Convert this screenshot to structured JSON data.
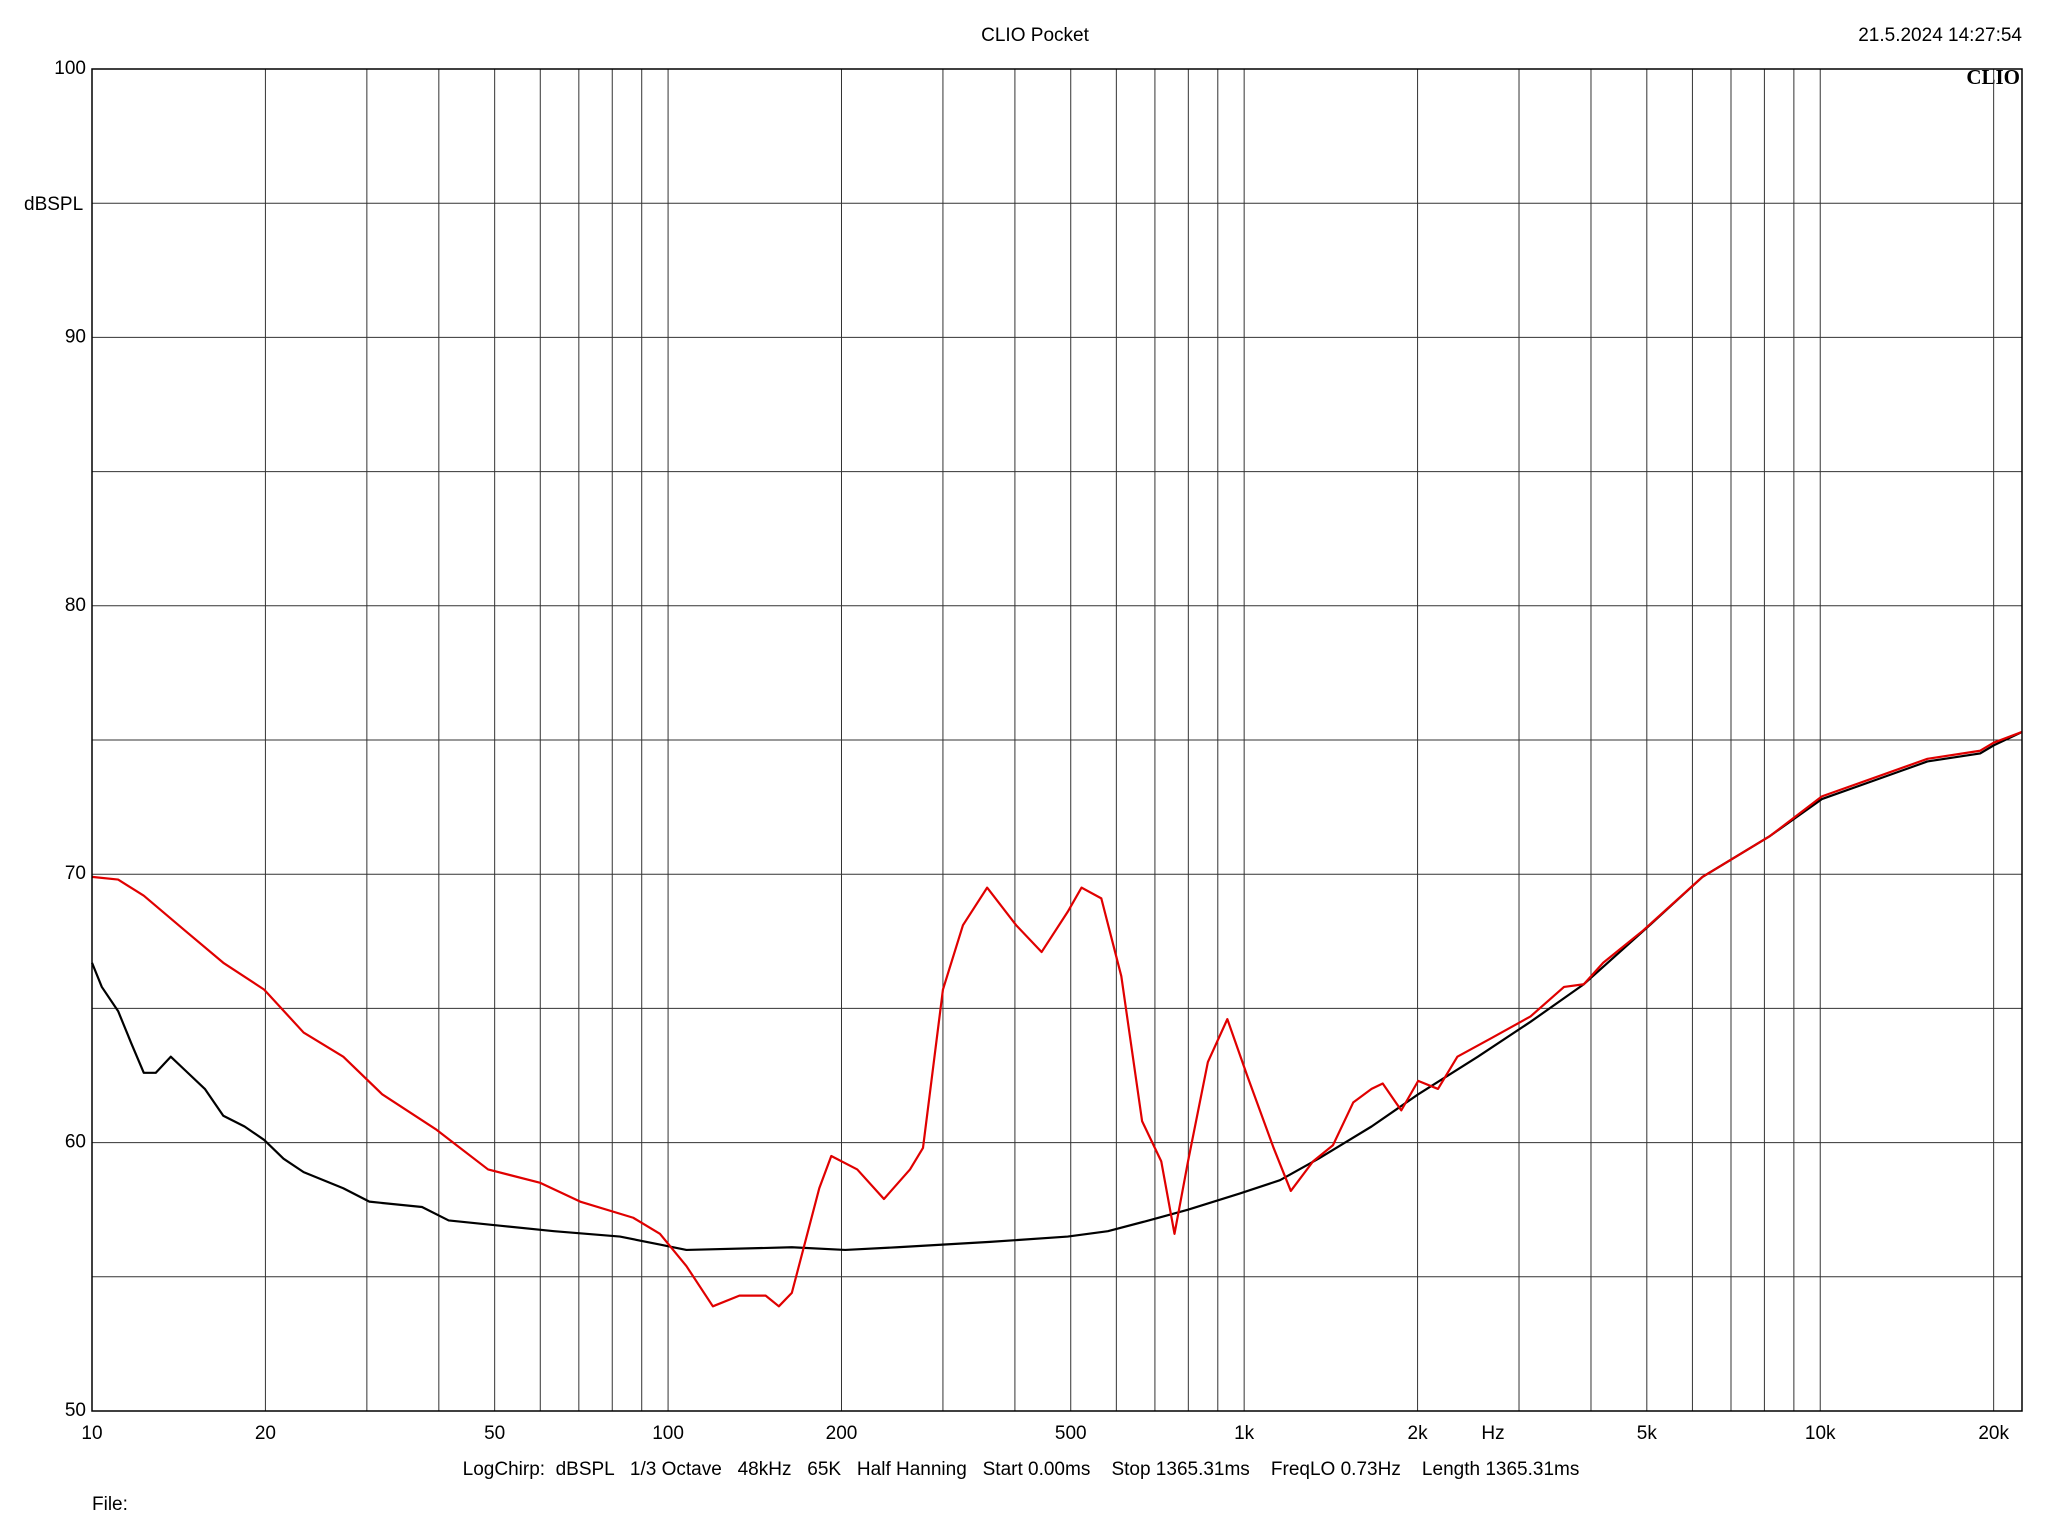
{
  "chart_data": {
    "type": "line",
    "title": "CLIO Pocket",
    "timestamp": "21.5.2024 14:27:54",
    "logo": "CLIO",
    "y_label": "dBSPL",
    "x_label": "Hz",
    "info": "LogChirp:  dBSPL   1/3 Octave   48kHz   65K   Half Hanning   Start 0.00ms    Stop 1365.31ms    FreqLO 0.73Hz    Length 1365.31ms",
    "footer": "File:",
    "xscale": "log",
    "xlim": [
      10,
      22400
    ],
    "ylim": [
      50,
      100
    ],
    "xticks": [
      10,
      20,
      50,
      100,
      200,
      500,
      {
        "value": 1000,
        "label": "1k"
      },
      {
        "value": 2000,
        "label": "2k"
      },
      {
        "value": 5000,
        "label": "5k"
      },
      {
        "value": 10000,
        "label": "10k"
      },
      {
        "value": 20000,
        "label": "20k"
      }
    ],
    "yticks": [
      50,
      60,
      70,
      80,
      90,
      100
    ],
    "xgrid": [
      10,
      20,
      30,
      40,
      50,
      60,
      70,
      80,
      90,
      100,
      200,
      300,
      400,
      500,
      600,
      700,
      800,
      900,
      1000,
      2000,
      3000,
      4000,
      5000,
      6000,
      7000,
      8000,
      9000,
      10000,
      20000
    ],
    "ygrid": [
      50,
      55,
      60,
      65,
      70,
      75,
      80,
      85,
      90,
      95,
      100
    ],
    "series": [
      {
        "color": "#000000",
        "x": [
          10,
          10.4,
          11.1,
          11.7,
          12.3,
          12.9,
          13.7,
          14.5,
          15.7,
          16.9,
          18.4,
          19.9,
          21.5,
          23.3,
          27.3,
          30.3,
          37.4,
          41.6,
          51.3,
          63.4,
          82.5,
          96.8,
          107.6,
          164,
          203,
          250,
          362,
          494,
          580,
          683,
          799,
          982,
          1154,
          1346,
          1664,
          2005,
          2545,
          3141,
          3887,
          5058,
          6245,
          8152,
          10066,
          12440,
          15350,
          18950,
          20000,
          22400
        ],
        "values": [
          66.7,
          65.8,
          64.9,
          63.7,
          62.6,
          62.6,
          63.2,
          62.7,
          62.0,
          61.0,
          60.6,
          60.1,
          59.4,
          58.9,
          58.3,
          57.8,
          57.6,
          57.1,
          56.9,
          56.7,
          56.5,
          56.2,
          56.0,
          56.1,
          56.0,
          56.1,
          56.3,
          56.5,
          56.7,
          57.1,
          57.5,
          58.1,
          58.6,
          59.4,
          60.6,
          61.8,
          63.2,
          64.5,
          65.9,
          68.1,
          69.9,
          71.4,
          72.8,
          73.5,
          74.2,
          74.5,
          74.8,
          75.3
        ]
      },
      {
        "color": "#e00000",
        "x": [
          10,
          11.1,
          12.3,
          14.5,
          16.9,
          19.9,
          23.3,
          27.3,
          31.9,
          39.5,
          48.7,
          60.0,
          70.4,
          87.0,
          96.8,
          107.6,
          119.6,
          133,
          147.7,
          155.7,
          164,
          183,
          192,
          213,
          237,
          263,
          277,
          300,
          325,
          358,
          402,
          445,
          494,
          522,
          565,
          612,
          665,
          718,
          757,
          799,
          865,
          935,
          1012,
          1125,
          1205,
          1317,
          1426,
          1547,
          1664,
          1740,
          1874,
          2005,
          2170,
          2345,
          2690,
          3141,
          3591,
          3887,
          4200,
          4925,
          6245,
          8152,
          10066,
          12440,
          15350,
          18950,
          20000,
          22400
        ],
        "values": [
          69.9,
          69.8,
          69.2,
          67.9,
          66.7,
          65.7,
          64.1,
          63.2,
          61.8,
          60.5,
          59.0,
          58.5,
          57.8,
          57.2,
          56.6,
          55.4,
          53.9,
          54.3,
          54.3,
          53.9,
          54.4,
          58.3,
          59.5,
          59.0,
          57.9,
          59.0,
          59.8,
          65.7,
          68.1,
          69.5,
          68.1,
          67.1,
          68.6,
          69.5,
          69.1,
          66.2,
          60.8,
          59.3,
          56.6,
          59.3,
          63.0,
          64.6,
          62.5,
          59.8,
          58.2,
          59.3,
          59.9,
          61.5,
          62.0,
          62.2,
          61.2,
          62.3,
          62.0,
          63.2,
          63.9,
          64.7,
          65.8,
          65.9,
          66.7,
          67.9,
          69.9,
          71.4,
          72.9,
          73.6,
          74.3,
          74.6,
          74.9,
          75.3
        ]
      }
    ]
  }
}
